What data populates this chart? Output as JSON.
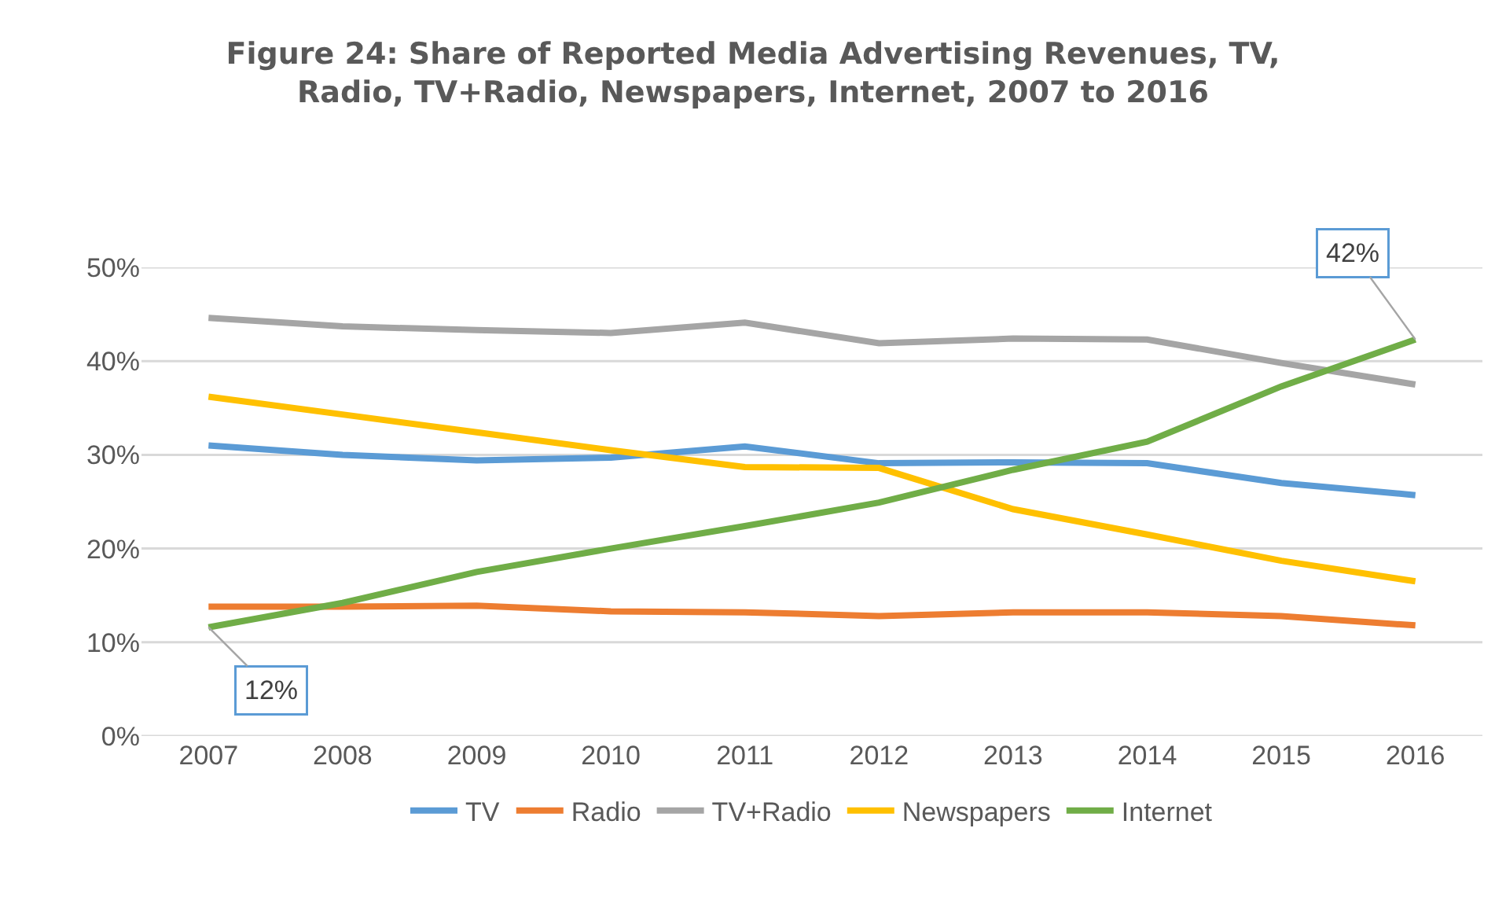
{
  "chart_data": {
    "type": "line",
    "title": "Figure 24: Share of Reported Media Advertising Revenues, TV, Radio, TV+Radio, Newspapers, Internet, 2007 to 2016",
    "categories": [
      "2007",
      "2008",
      "2009",
      "2010",
      "2011",
      "2012",
      "2013",
      "2014",
      "2015",
      "2016"
    ],
    "series": [
      {
        "name": "TV",
        "color": "#5b9bd5",
        "values": [
          31,
          30,
          29.4,
          29.7,
          30.9,
          29.1,
          29.2,
          29.1,
          27,
          25.7
        ]
      },
      {
        "name": "Radio",
        "color": "#ed7d31",
        "values": [
          13.8,
          13.8,
          13.9,
          13.3,
          13.2,
          12.8,
          13.2,
          13.2,
          12.8,
          11.8
        ]
      },
      {
        "name": "TV+Radio",
        "color": "#a5a5a5",
        "values": [
          44.6,
          43.7,
          43.3,
          43,
          44.1,
          41.9,
          42.4,
          42.3,
          39.8,
          37.5
        ]
      },
      {
        "name": "Newspapers",
        "color": "#ffc000",
        "values": [
          36.2,
          34.3,
          32.4,
          30.5,
          28.7,
          28.6,
          24.2,
          21.5,
          18.7,
          16.5
        ]
      },
      {
        "name": "Internet",
        "color": "#70ad47",
        "values": [
          11.6,
          14.2,
          17.5,
          20,
          22.4,
          24.9,
          28.4,
          31.4,
          37.3,
          42.3
        ]
      }
    ],
    "annotations": [
      {
        "text": "12%",
        "x": "2007",
        "y": 11.6
      },
      {
        "text": "42%",
        "x": "2016",
        "y": 42.3
      }
    ],
    "ylim": [
      0,
      50
    ],
    "yticks": [
      {
        "value": 0,
        "label": "0%"
      },
      {
        "value": 10,
        "label": "10%"
      },
      {
        "value": 20,
        "label": "20%"
      },
      {
        "value": 30,
        "label": "30%"
      },
      {
        "value": 40,
        "label": "40%"
      },
      {
        "value": 50,
        "label": "50%"
      }
    ],
    "grid": "y",
    "legend": "bottom",
    "marker": "none",
    "line_style": "solid"
  }
}
